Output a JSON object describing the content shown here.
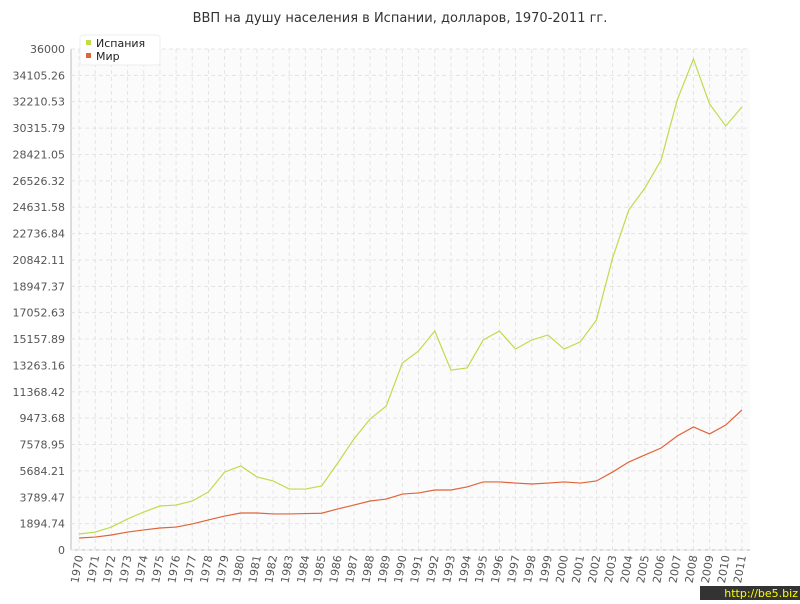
{
  "chart_data": {
    "type": "line",
    "title": "ВВП на душу населения в Испании, долларов, 1970-2011 гг.",
    "categories": [
      "1970",
      "1971",
      "1972",
      "1973",
      "1974",
      "1975",
      "1976",
      "1977",
      "1978",
      "1979",
      "1980",
      "1981",
      "1982",
      "1983",
      "1984",
      "1985",
      "1986",
      "1987",
      "1988",
      "1989",
      "1990",
      "1991",
      "1992",
      "1993",
      "1994",
      "1995",
      "1996",
      "1997",
      "1998",
      "1999",
      "2000",
      "2001",
      "2002",
      "2003",
      "2004",
      "2005",
      "2006",
      "2007",
      "2008",
      "2009",
      "2010",
      "2011"
    ],
    "series": [
      {
        "name": "Испания",
        "color": "#bedc4c",
        "values": [
          1150,
          1290,
          1650,
          2230,
          2730,
          3160,
          3230,
          3520,
          4170,
          5600,
          6040,
          5250,
          4960,
          4380,
          4380,
          4600,
          6250,
          7980,
          9410,
          10350,
          13440,
          14300,
          15740,
          12930,
          13080,
          15090,
          15740,
          14440,
          15090,
          15450,
          14440,
          14950,
          16530,
          20980,
          24430,
          26010,
          28020,
          32340,
          35280,
          32050,
          30470,
          31830
        ]
      },
      {
        "name": "Мир",
        "color": "#e0643a",
        "values": [
          860,
          930,
          1080,
          1290,
          1440,
          1580,
          1650,
          1870,
          2160,
          2440,
          2660,
          2660,
          2590,
          2590,
          2620,
          2640,
          2950,
          3230,
          3520,
          3660,
          4020,
          4100,
          4310,
          4310,
          4530,
          4890,
          4890,
          4810,
          4740,
          4810,
          4890,
          4810,
          4960,
          5600,
          6320,
          6830,
          7330,
          8190,
          8840,
          8340,
          8980,
          10060
        ]
      }
    ],
    "ylim": [
      0,
      36000
    ],
    "yticks": [
      0,
      1894.74,
      3789.47,
      5684.21,
      7578.95,
      9473.68,
      11368.42,
      13263.16,
      15157.89,
      17052.63,
      18947.37,
      20842.11,
      22736.84,
      24631.58,
      26526.32,
      28421.05,
      30315.79,
      32210.53,
      34105.26,
      36000
    ],
    "grid": true,
    "legend": "top-left",
    "watermark": "http://be5.biz"
  }
}
